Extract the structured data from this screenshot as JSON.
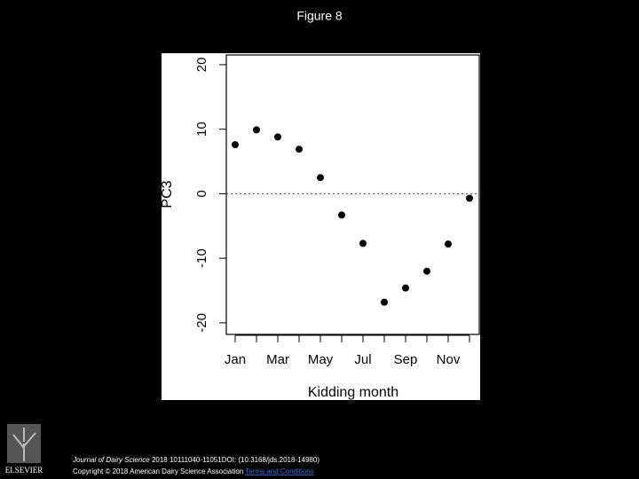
{
  "header": {
    "title": "Figure 8"
  },
  "chart_data": {
    "type": "scatter",
    "x_label": "Kidding month",
    "y_label": "PC3",
    "categories": [
      "Jan",
      null,
      "Mar",
      null,
      "May",
      null,
      "Jul",
      null,
      "Sep",
      null,
      "Nov",
      null
    ],
    "values": [
      7.6,
      9.9,
      8.8,
      6.9,
      2.5,
      -3.3,
      -7.7,
      -16.8,
      -14.6,
      -12.0,
      -7.8,
      -0.7
    ],
    "color": "#000000",
    "ylim": [
      -21.8,
      21.5
    ],
    "yticks": [
      -20,
      -10,
      0,
      10,
      20
    ],
    "reference_line": 0
  },
  "footer": {
    "journal": "Journal of Dairy Science",
    "citation": "2018 10111040-11051DOI: (10.3168/jds.2018-14980)",
    "copyright": "Copyright © 2018 American Dairy Science Association",
    "link": "Terms and Conditions",
    "publisher": "ELSEVIER"
  }
}
